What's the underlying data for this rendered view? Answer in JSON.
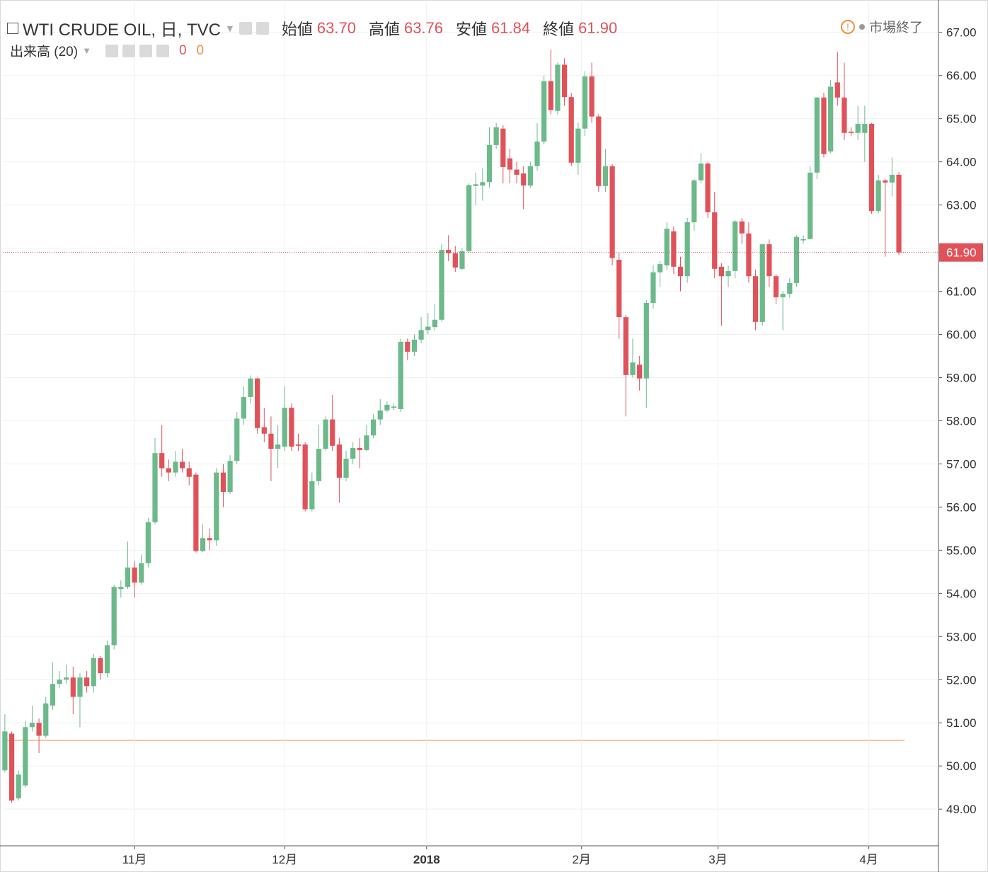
{
  "header": {
    "title": "WTI CRUDE OIL, 日, TVC",
    "ohlc": [
      {
        "name": "始値",
        "value": "63.70"
      },
      {
        "name": "高値",
        "value": "63.76"
      },
      {
        "name": "安値",
        "value": "61.84"
      },
      {
        "name": "終値",
        "value": "61.90"
      }
    ],
    "status": "市場終了",
    "volume": {
      "name": "出来高 (20)",
      "values": [
        "0",
        "0"
      ]
    }
  },
  "chart_data": {
    "type": "candlestick",
    "up_color": "#6cb98a",
    "down_color": "#e0525a",
    "open": [
      49.9,
      50.75,
      49.25,
      49.55,
      50.9,
      51.0,
      50.7,
      51.4,
      51.9,
      52.0,
      52.05,
      51.6,
      52.05,
      51.85,
      52.5,
      52.15,
      52.8,
      54.1,
      54.15,
      54.6,
      54.25,
      54.7,
      55.65,
      57.25,
      56.9,
      56.8,
      57.05,
      56.9,
      56.75,
      54.98,
      55.28,
      55.23,
      56.8,
      56.35,
      57.07,
      58.05,
      58.55,
      58.98,
      57.85,
      57.7,
      57.35,
      57.4,
      58.3,
      57.45,
      57.45,
      55.95,
      56.6,
      57.35,
      58.03,
      57.45,
      56.68,
      57.12,
      57.37,
      57.32,
      57.66,
      58.03,
      58.24,
      58.3,
      58.27,
      59.83,
      59.6,
      59.88,
      60.1,
      60.17,
      60.34,
      61.96,
      61.88,
      61.52,
      61.93,
      63.44,
      63.45,
      63.53,
      64.39,
      64.77,
      64.08,
      63.82,
      63.73,
      63.45,
      63.9,
      64.47,
      65.87,
      65.18,
      66.25,
      65.5,
      63.98,
      64.77,
      65.98,
      65.05,
      63.44,
      63.9,
      61.73,
      60.4,
      59.06,
      59.3,
      58.98,
      60.73,
      61.44,
      61.6,
      62.39,
      61.57,
      61.35,
      62.6,
      63.57,
      63.96,
      62.83,
      61.57,
      61.35,
      61.47,
      62.62,
      62.34,
      61.35,
      60.29,
      62.09,
      61.35,
      60.86,
      60.94,
      61.19,
      62.18,
      62.21,
      63.75,
      65.49,
      64.24,
      65.84,
      65.49,
      64.7,
      64.67,
      64.67,
      64.88,
      62.86,
      63.57,
      63.52,
      63.7
    ],
    "high": [
      51.2,
      50.8,
      49.9,
      51.05,
      51.4,
      51.1,
      51.6,
      52.4,
      52.2,
      52.35,
      52.3,
      52.15,
      52.2,
      52.6,
      52.55,
      52.9,
      54.2,
      54.3,
      55.2,
      54.75,
      54.9,
      55.75,
      57.6,
      57.9,
      57.1,
      57.3,
      57.35,
      57.05,
      56.8,
      55.6,
      55.5,
      56.9,
      57.0,
      57.2,
      58.2,
      58.8,
      59.05,
      59.0,
      58.3,
      58.1,
      57.9,
      58.8,
      58.4,
      57.7,
      57.5,
      56.8,
      57.9,
      58.1,
      58.6,
      57.6,
      57.3,
      57.5,
      57.6,
      57.9,
      58.15,
      58.5,
      58.45,
      58.4,
      59.9,
      59.9,
      60.0,
      60.4,
      60.5,
      60.7,
      62.1,
      62.3,
      62.05,
      62.0,
      63.5,
      63.75,
      63.85,
      64.8,
      64.9,
      64.85,
      64.3,
      64.0,
      63.9,
      64.0,
      64.9,
      66.0,
      66.6,
      66.3,
      66.4,
      65.6,
      64.9,
      66.1,
      66.3,
      65.1,
      64.3,
      63.95,
      61.9,
      60.45,
      59.9,
      59.5,
      60.8,
      61.6,
      61.7,
      62.6,
      62.5,
      61.8,
      62.7,
      63.6,
      64.2,
      64.0,
      63.3,
      61.65,
      61.6,
      62.65,
      62.7,
      62.6,
      61.5,
      62.1,
      62.2,
      61.4,
      61.0,
      61.3,
      62.3,
      62.3,
      63.9,
      65.5,
      65.6,
      65.9,
      66.55,
      66.3,
      64.8,
      65.3,
      65.3,
      64.9,
      63.7,
      63.6,
      64.1,
      63.76
    ],
    "low": [
      49.85,
      49.15,
      49.2,
      49.5,
      50.8,
      50.3,
      50.65,
      51.3,
      51.8,
      51.9,
      51.2,
      50.9,
      51.7,
      51.7,
      52.0,
      52.05,
      52.7,
      53.9,
      54.1,
      53.9,
      54.2,
      54.6,
      55.6,
      56.7,
      56.6,
      56.7,
      56.8,
      56.5,
      54.95,
      54.95,
      55.0,
      55.1,
      56.0,
      56.3,
      57.0,
      57.9,
      58.4,
      57.7,
      57.5,
      56.6,
      56.9,
      57.3,
      57.3,
      57.3,
      55.9,
      55.9,
      56.5,
      57.3,
      57.3,
      56.1,
      56.6,
      57.0,
      56.9,
      57.3,
      57.6,
      57.9,
      58.2,
      58.25,
      58.2,
      59.4,
      59.5,
      59.8,
      60.0,
      60.1,
      60.3,
      61.7,
      61.45,
      61.5,
      61.9,
      63.0,
      63.1,
      63.4,
      64.3,
      63.5,
      63.5,
      63.5,
      62.9,
      63.4,
      63.8,
      64.4,
      65.1,
      65.1,
      65.3,
      63.9,
      63.7,
      64.6,
      64.9,
      63.3,
      63.3,
      61.6,
      59.9,
      58.1,
      59.0,
      58.7,
      58.3,
      60.6,
      61.1,
      61.5,
      61.4,
      61.0,
      61.2,
      62.4,
      63.5,
      62.7,
      61.3,
      60.2,
      61.1,
      61.3,
      62.1,
      61.2,
      60.1,
      60.2,
      61.1,
      60.7,
      60.1,
      60.85,
      61.1,
      62.1,
      62.2,
      63.6,
      64.1,
      64.2,
      65.3,
      64.5,
      64.6,
      64.5,
      64.0,
      62.8,
      62.8,
      61.8,
      63.2,
      61.84
    ],
    "close": [
      50.8,
      49.2,
      49.8,
      50.9,
      51.0,
      50.7,
      51.45,
      51.9,
      52.0,
      52.05,
      51.6,
      52.05,
      51.85,
      52.5,
      52.15,
      52.8,
      54.15,
      54.15,
      54.6,
      54.25,
      54.7,
      55.65,
      57.25,
      56.9,
      56.8,
      57.05,
      56.9,
      56.7,
      54.98,
      55.28,
      55.23,
      56.8,
      56.35,
      57.07,
      58.05,
      58.55,
      58.98,
      57.83,
      57.7,
      57.35,
      57.45,
      58.3,
      57.4,
      57.42,
      55.95,
      56.6,
      57.35,
      58.03,
      57.42,
      56.68,
      57.12,
      57.37,
      57.32,
      57.66,
      58.03,
      58.24,
      58.37,
      58.33,
      59.83,
      59.6,
      59.88,
      60.1,
      60.18,
      60.34,
      61.96,
      61.88,
      61.55,
      61.93,
      63.46,
      63.48,
      63.53,
      64.39,
      64.8,
      63.88,
      63.82,
      63.7,
      63.45,
      63.9,
      64.47,
      65.87,
      65.2,
      66.25,
      65.5,
      63.98,
      64.77,
      65.98,
      65.05,
      63.44,
      63.9,
      61.77,
      60.4,
      59.06,
      59.35,
      58.98,
      60.73,
      61.44,
      61.63,
      62.45,
      61.57,
      61.35,
      62.6,
      63.57,
      63.96,
      62.83,
      61.52,
      61.35,
      61.47,
      62.62,
      62.34,
      61.35,
      60.29,
      62.09,
      61.35,
      60.86,
      60.94,
      61.19,
      62.26,
      62.21,
      63.75,
      65.49,
      64.18,
      65.74,
      65.49,
      64.67,
      64.67,
      64.88,
      64.88,
      62.86,
      63.57,
      63.52,
      63.7,
      61.9
    ],
    "xlim": [
      -0.3,
      136.8
    ],
    "xticks": [
      {
        "value": 19,
        "label": "11月"
      },
      {
        "value": 41,
        "label": "12月"
      },
      {
        "value": 61.8,
        "label": "2018"
      },
      {
        "value": 84.5,
        "label": "2月"
      },
      {
        "value": 104.5,
        "label": "3月"
      },
      {
        "value": 126.6,
        "label": "4月"
      }
    ],
    "ylim": [
      48.15,
      67.75
    ],
    "yticks": [
      {
        "value": 49,
        "label": "49.00"
      },
      {
        "value": 50,
        "label": "50.00"
      },
      {
        "value": 51,
        "label": "51.00"
      },
      {
        "value": 52,
        "label": "52.00"
      },
      {
        "value": 53,
        "label": "53.00"
      },
      {
        "value": 54,
        "label": "54.00"
      },
      {
        "value": 55,
        "label": "55.00"
      },
      {
        "value": 56,
        "label": "56.00"
      },
      {
        "value": 57,
        "label": "57.00"
      },
      {
        "value": 58,
        "label": "58.00"
      },
      {
        "value": 59,
        "label": "59.00"
      },
      {
        "value": 60,
        "label": "60.00"
      },
      {
        "value": 61,
        "label": "61.00"
      },
      {
        "value": 62,
        "label": "62.00"
      },
      {
        "value": 63,
        "label": "63.00"
      },
      {
        "value": 64,
        "label": "64.00"
      },
      {
        "value": 65,
        "label": "65.00"
      },
      {
        "value": 66,
        "label": "66.00"
      },
      {
        "value": 67,
        "label": "67.00"
      }
    ],
    "grid": true,
    "last_price": {
      "value": 61.9,
      "label": "61.90"
    }
  }
}
